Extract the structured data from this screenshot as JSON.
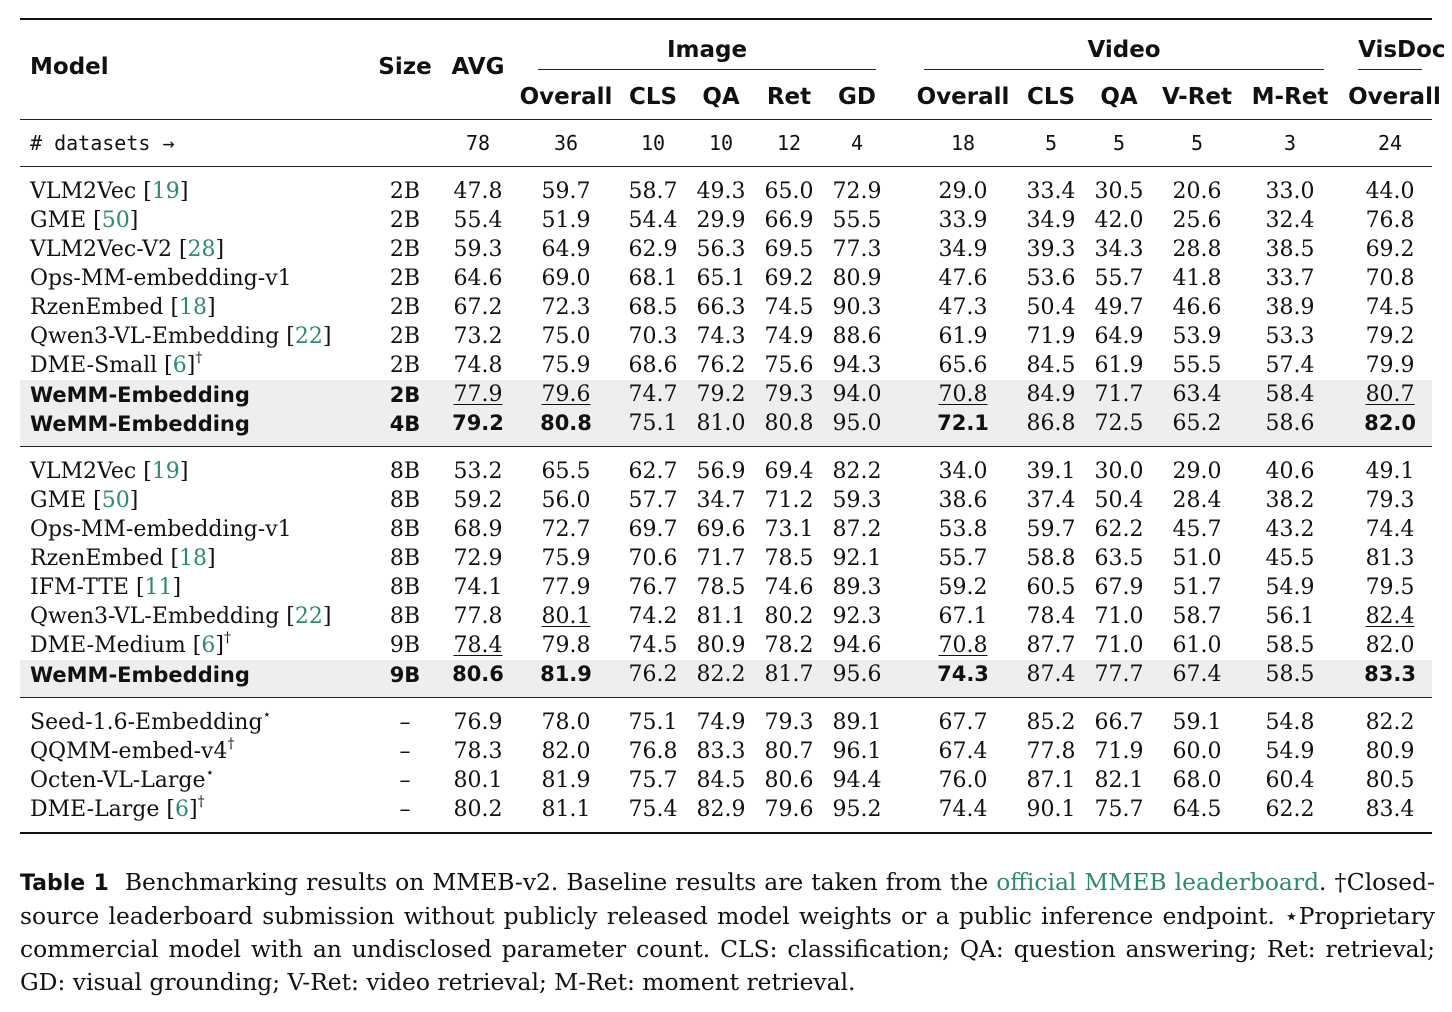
{
  "header": {
    "model": "Model",
    "size": "Size",
    "avg": "AVG",
    "groups": {
      "image": "Image",
      "video": "Video",
      "visdoc": "VisDoc"
    },
    "image_cols": [
      "Overall",
      "CLS",
      "QA",
      "Ret",
      "GD"
    ],
    "video_cols": [
      "Overall",
      "CLS",
      "QA",
      "V-Ret",
      "M-Ret"
    ],
    "visdoc_cols": [
      "Overall"
    ]
  },
  "datasets_row": {
    "label": "# datasets →",
    "values": [
      "78",
      "36",
      "10",
      "10",
      "12",
      "4",
      "18",
      "5",
      "5",
      "5",
      "3",
      "24"
    ]
  },
  "sections": [
    {
      "rows": [
        {
          "name": "VLM2Vec",
          "ref": "19",
          "mark": "",
          "size": "2B",
          "v": [
            "47.8",
            "59.7",
            "58.7",
            "49.3",
            "65.0",
            "72.9",
            "29.0",
            "33.4",
            "30.5",
            "20.6",
            "33.0",
            "44.0"
          ]
        },
        {
          "name": "GME",
          "ref": "50",
          "mark": "",
          "size": "2B",
          "v": [
            "55.4",
            "51.9",
            "54.4",
            "29.9",
            "66.9",
            "55.5",
            "33.9",
            "34.9",
            "42.0",
            "25.6",
            "32.4",
            "76.8"
          ]
        },
        {
          "name": "VLM2Vec-V2",
          "ref": "28",
          "mark": "",
          "size": "2B",
          "v": [
            "59.3",
            "64.9",
            "62.9",
            "56.3",
            "69.5",
            "77.3",
            "34.9",
            "39.3",
            "34.3",
            "28.8",
            "38.5",
            "69.2"
          ]
        },
        {
          "name": "Ops-MM-embedding-v1",
          "ref": "",
          "mark": "",
          "size": "2B",
          "v": [
            "64.6",
            "69.0",
            "68.1",
            "65.1",
            "69.2",
            "80.9",
            "47.6",
            "53.6",
            "55.7",
            "41.8",
            "33.7",
            "70.8"
          ]
        },
        {
          "name": "RzenEmbed",
          "ref": "18",
          "mark": "",
          "size": "2B",
          "v": [
            "67.2",
            "72.3",
            "68.5",
            "66.3",
            "74.5",
            "90.3",
            "47.3",
            "50.4",
            "49.7",
            "46.6",
            "38.9",
            "74.5"
          ]
        },
        {
          "name": "Qwen3-VL-Embedding",
          "ref": "22",
          "mark": "",
          "size": "2B",
          "v": [
            "73.2",
            "75.0",
            "70.3",
            "74.3",
            "74.9",
            "88.6",
            "61.9",
            "71.9",
            "64.9",
            "53.9",
            "53.3",
            "79.2"
          ]
        },
        {
          "name": "DME-Small",
          "ref": "6",
          "mark": "†",
          "size": "2B",
          "v": [
            "74.8",
            "75.9",
            "68.6",
            "76.2",
            "75.6",
            "94.3",
            "65.6",
            "84.5",
            "61.9",
            "55.5",
            "57.4",
            "79.9"
          ]
        },
        {
          "name": "WeMM-Embedding",
          "ref": "",
          "mark": "",
          "size": "2B",
          "hl": true,
          "v": [
            "77.9",
            "79.6",
            "74.7",
            "79.2",
            "79.3",
            "94.0",
            "70.8",
            "84.9",
            "71.7",
            "63.4",
            "58.4",
            "80.7"
          ],
          "u": [
            0,
            1,
            6,
            11
          ],
          "b": []
        },
        {
          "name": "WeMM-Embedding",
          "ref": "",
          "mark": "",
          "size": "4B",
          "hl": true,
          "v": [
            "79.2",
            "80.8",
            "75.1",
            "81.0",
            "80.8",
            "95.0",
            "72.1",
            "86.8",
            "72.5",
            "65.2",
            "58.6",
            "82.0"
          ],
          "u": [],
          "b": [
            0,
            1,
            6,
            11
          ]
        }
      ]
    },
    {
      "rows": [
        {
          "name": "VLM2Vec",
          "ref": "19",
          "mark": "",
          "size": "8B",
          "v": [
            "53.2",
            "65.5",
            "62.7",
            "56.9",
            "69.4",
            "82.2",
            "34.0",
            "39.1",
            "30.0",
            "29.0",
            "40.6",
            "49.1"
          ]
        },
        {
          "name": "GME",
          "ref": "50",
          "mark": "",
          "size": "8B",
          "v": [
            "59.2",
            "56.0",
            "57.7",
            "34.7",
            "71.2",
            "59.3",
            "38.6",
            "37.4",
            "50.4",
            "28.4",
            "38.2",
            "79.3"
          ]
        },
        {
          "name": "Ops-MM-embedding-v1",
          "ref": "",
          "mark": "",
          "size": "8B",
          "v": [
            "68.9",
            "72.7",
            "69.7",
            "69.6",
            "73.1",
            "87.2",
            "53.8",
            "59.7",
            "62.2",
            "45.7",
            "43.2",
            "74.4"
          ]
        },
        {
          "name": "RzenEmbed",
          "ref": "18",
          "mark": "",
          "size": "8B",
          "v": [
            "72.9",
            "75.9",
            "70.6",
            "71.7",
            "78.5",
            "92.1",
            "55.7",
            "58.8",
            "63.5",
            "51.0",
            "45.5",
            "81.3"
          ]
        },
        {
          "name": "IFM-TTE",
          "ref": "11",
          "mark": "",
          "size": "8B",
          "v": [
            "74.1",
            "77.9",
            "76.7",
            "78.5",
            "74.6",
            "89.3",
            "59.2",
            "60.5",
            "67.9",
            "51.7",
            "54.9",
            "79.5"
          ]
        },
        {
          "name": "Qwen3-VL-Embedding",
          "ref": "22",
          "mark": "",
          "size": "8B",
          "v": [
            "77.8",
            "80.1",
            "74.2",
            "81.1",
            "80.2",
            "92.3",
            "67.1",
            "78.4",
            "71.0",
            "58.7",
            "56.1",
            "82.4"
          ],
          "u": [
            1,
            11
          ],
          "b": []
        },
        {
          "name": "DME-Medium",
          "ref": "6",
          "mark": "†",
          "size": "9B",
          "v": [
            "78.4",
            "79.8",
            "74.5",
            "80.9",
            "78.2",
            "94.6",
            "70.8",
            "87.7",
            "71.0",
            "61.0",
            "58.5",
            "82.0"
          ],
          "u": [
            0,
            6
          ],
          "b": []
        },
        {
          "name": "WeMM-Embedding",
          "ref": "",
          "mark": "",
          "size": "9B",
          "hl": true,
          "v": [
            "80.6",
            "81.9",
            "76.2",
            "82.2",
            "81.7",
            "95.6",
            "74.3",
            "87.4",
            "77.7",
            "67.4",
            "58.5",
            "83.3"
          ],
          "u": [],
          "b": [
            0,
            1,
            6,
            11
          ]
        }
      ]
    },
    {
      "rows": [
        {
          "name": "Seed-1.6-Embedding",
          "ref": "",
          "mark": "⋆",
          "size": "–",
          "v": [
            "76.9",
            "78.0",
            "75.1",
            "74.9",
            "79.3",
            "89.1",
            "67.7",
            "85.2",
            "66.7",
            "59.1",
            "54.8",
            "82.2"
          ]
        },
        {
          "name": "QQMM-embed-v4",
          "ref": "",
          "mark": "†",
          "size": "–",
          "v": [
            "78.3",
            "82.0",
            "76.8",
            "83.3",
            "80.7",
            "96.1",
            "67.4",
            "77.8",
            "71.9",
            "60.0",
            "54.9",
            "80.9"
          ]
        },
        {
          "name": "Octen-VL-Large",
          "ref": "",
          "mark": "⋆",
          "size": "–",
          "v": [
            "80.1",
            "81.9",
            "75.7",
            "84.5",
            "80.6",
            "94.4",
            "76.0",
            "87.1",
            "82.1",
            "68.0",
            "60.4",
            "80.5"
          ]
        },
        {
          "name": "DME-Large",
          "ref": "6",
          "mark": "†",
          "size": "–",
          "v": [
            "80.2",
            "81.1",
            "75.4",
            "82.9",
            "79.6",
            "95.2",
            "74.4",
            "90.1",
            "75.7",
            "64.5",
            "62.2",
            "83.4"
          ]
        }
      ]
    }
  ],
  "caption": {
    "label": "Table 1",
    "text1": "Benchmarking results on MMEB-v2. Baseline results are taken from the ",
    "link": "official MMEB leaderboard",
    "text2": ". †Closed-source leaderboard submission without publicly released model weights or a public inference endpoint. ⋆Proprietary commercial model with an undisclosed parameter count. CLS: classification; QA: question answering; Ret: retrieval; GD: visual grounding; V-Ret: video retrieval; M-Ret: moment retrieval."
  }
}
